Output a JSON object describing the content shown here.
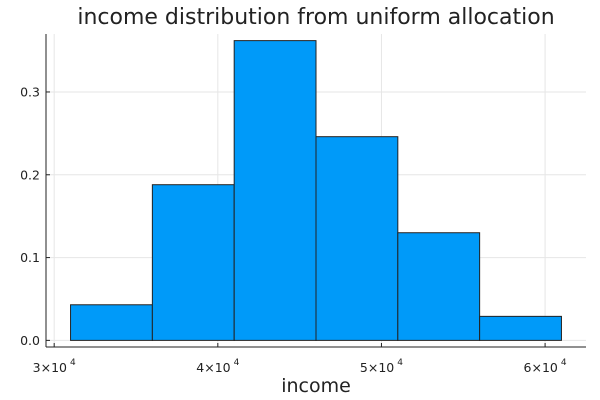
{
  "chart_data": {
    "type": "bar",
    "title": "income distribution from uniform allocation",
    "xlabel": "income",
    "ylabel": "",
    "xlim": [
      29500,
      62500
    ],
    "ylim": [
      -0.008,
      0.37
    ],
    "grid": true,
    "legend": "none",
    "bar_color": "#009af9",
    "edge_color": "#222222",
    "bins": [
      {
        "x0": 31000,
        "x1": 36000,
        "value": 0.043
      },
      {
        "x0": 36000,
        "x1": 41000,
        "value": 0.188
      },
      {
        "x0": 41000,
        "x1": 46000,
        "value": 0.362
      },
      {
        "x0": 46000,
        "x1": 51000,
        "value": 0.246
      },
      {
        "x0": 51000,
        "x1": 56000,
        "value": 0.13
      },
      {
        "x0": 56000,
        "x1": 61000,
        "value": 0.029
      }
    ],
    "x_ticks": [
      {
        "value": 30000,
        "base": "3×10",
        "exp": "4"
      },
      {
        "value": 40000,
        "base": "4×10",
        "exp": "4"
      },
      {
        "value": 50000,
        "base": "5×10",
        "exp": "4"
      },
      {
        "value": 60000,
        "base": "6×10",
        "exp": "4"
      }
    ],
    "y_ticks": [
      {
        "value": 0.0,
        "label": "0.0"
      },
      {
        "value": 0.1,
        "label": "0.1"
      },
      {
        "value": 0.2,
        "label": "0.2"
      },
      {
        "value": 0.3,
        "label": "0.3"
      }
    ]
  }
}
